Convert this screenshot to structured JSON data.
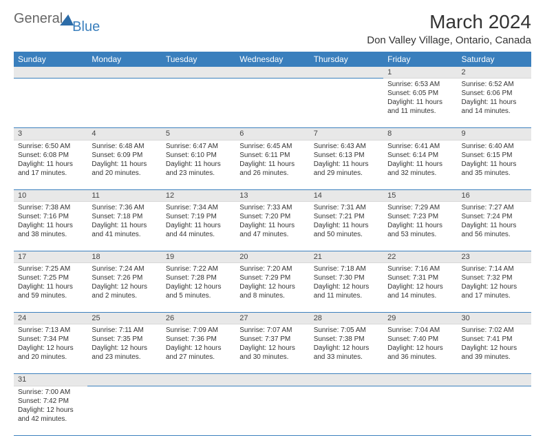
{
  "logo": {
    "part1": "General",
    "part2": "Blue"
  },
  "title": "March 2024",
  "location": "Don Valley Village, Ontario, Canada",
  "colors": {
    "header_bg": "#3a7fbd",
    "header_text": "#ffffff",
    "daynum_bg": "#e8e8e8",
    "cell_border_bottom": "#3a7fbd",
    "text": "#333333"
  },
  "weekdays": [
    "Sunday",
    "Monday",
    "Tuesday",
    "Wednesday",
    "Thursday",
    "Friday",
    "Saturday"
  ],
  "grid": [
    [
      null,
      null,
      null,
      null,
      null,
      {
        "d": "1",
        "sr": "Sunrise: 6:53 AM",
        "ss": "Sunset: 6:05 PM",
        "dl1": "Daylight: 11 hours",
        "dl2": "and 11 minutes."
      },
      {
        "d": "2",
        "sr": "Sunrise: 6:52 AM",
        "ss": "Sunset: 6:06 PM",
        "dl1": "Daylight: 11 hours",
        "dl2": "and 14 minutes."
      }
    ],
    [
      {
        "d": "3",
        "sr": "Sunrise: 6:50 AM",
        "ss": "Sunset: 6:08 PM",
        "dl1": "Daylight: 11 hours",
        "dl2": "and 17 minutes."
      },
      {
        "d": "4",
        "sr": "Sunrise: 6:48 AM",
        "ss": "Sunset: 6:09 PM",
        "dl1": "Daylight: 11 hours",
        "dl2": "and 20 minutes."
      },
      {
        "d": "5",
        "sr": "Sunrise: 6:47 AM",
        "ss": "Sunset: 6:10 PM",
        "dl1": "Daylight: 11 hours",
        "dl2": "and 23 minutes."
      },
      {
        "d": "6",
        "sr": "Sunrise: 6:45 AM",
        "ss": "Sunset: 6:11 PM",
        "dl1": "Daylight: 11 hours",
        "dl2": "and 26 minutes."
      },
      {
        "d": "7",
        "sr": "Sunrise: 6:43 AM",
        "ss": "Sunset: 6:13 PM",
        "dl1": "Daylight: 11 hours",
        "dl2": "and 29 minutes."
      },
      {
        "d": "8",
        "sr": "Sunrise: 6:41 AM",
        "ss": "Sunset: 6:14 PM",
        "dl1": "Daylight: 11 hours",
        "dl2": "and 32 minutes."
      },
      {
        "d": "9",
        "sr": "Sunrise: 6:40 AM",
        "ss": "Sunset: 6:15 PM",
        "dl1": "Daylight: 11 hours",
        "dl2": "and 35 minutes."
      }
    ],
    [
      {
        "d": "10",
        "sr": "Sunrise: 7:38 AM",
        "ss": "Sunset: 7:16 PM",
        "dl1": "Daylight: 11 hours",
        "dl2": "and 38 minutes."
      },
      {
        "d": "11",
        "sr": "Sunrise: 7:36 AM",
        "ss": "Sunset: 7:18 PM",
        "dl1": "Daylight: 11 hours",
        "dl2": "and 41 minutes."
      },
      {
        "d": "12",
        "sr": "Sunrise: 7:34 AM",
        "ss": "Sunset: 7:19 PM",
        "dl1": "Daylight: 11 hours",
        "dl2": "and 44 minutes."
      },
      {
        "d": "13",
        "sr": "Sunrise: 7:33 AM",
        "ss": "Sunset: 7:20 PM",
        "dl1": "Daylight: 11 hours",
        "dl2": "and 47 minutes."
      },
      {
        "d": "14",
        "sr": "Sunrise: 7:31 AM",
        "ss": "Sunset: 7:21 PM",
        "dl1": "Daylight: 11 hours",
        "dl2": "and 50 minutes."
      },
      {
        "d": "15",
        "sr": "Sunrise: 7:29 AM",
        "ss": "Sunset: 7:23 PM",
        "dl1": "Daylight: 11 hours",
        "dl2": "and 53 minutes."
      },
      {
        "d": "16",
        "sr": "Sunrise: 7:27 AM",
        "ss": "Sunset: 7:24 PM",
        "dl1": "Daylight: 11 hours",
        "dl2": "and 56 minutes."
      }
    ],
    [
      {
        "d": "17",
        "sr": "Sunrise: 7:25 AM",
        "ss": "Sunset: 7:25 PM",
        "dl1": "Daylight: 11 hours",
        "dl2": "and 59 minutes."
      },
      {
        "d": "18",
        "sr": "Sunrise: 7:24 AM",
        "ss": "Sunset: 7:26 PM",
        "dl1": "Daylight: 12 hours",
        "dl2": "and 2 minutes."
      },
      {
        "d": "19",
        "sr": "Sunrise: 7:22 AM",
        "ss": "Sunset: 7:28 PM",
        "dl1": "Daylight: 12 hours",
        "dl2": "and 5 minutes."
      },
      {
        "d": "20",
        "sr": "Sunrise: 7:20 AM",
        "ss": "Sunset: 7:29 PM",
        "dl1": "Daylight: 12 hours",
        "dl2": "and 8 minutes."
      },
      {
        "d": "21",
        "sr": "Sunrise: 7:18 AM",
        "ss": "Sunset: 7:30 PM",
        "dl1": "Daylight: 12 hours",
        "dl2": "and 11 minutes."
      },
      {
        "d": "22",
        "sr": "Sunrise: 7:16 AM",
        "ss": "Sunset: 7:31 PM",
        "dl1": "Daylight: 12 hours",
        "dl2": "and 14 minutes."
      },
      {
        "d": "23",
        "sr": "Sunrise: 7:14 AM",
        "ss": "Sunset: 7:32 PM",
        "dl1": "Daylight: 12 hours",
        "dl2": "and 17 minutes."
      }
    ],
    [
      {
        "d": "24",
        "sr": "Sunrise: 7:13 AM",
        "ss": "Sunset: 7:34 PM",
        "dl1": "Daylight: 12 hours",
        "dl2": "and 20 minutes."
      },
      {
        "d": "25",
        "sr": "Sunrise: 7:11 AM",
        "ss": "Sunset: 7:35 PM",
        "dl1": "Daylight: 12 hours",
        "dl2": "and 23 minutes."
      },
      {
        "d": "26",
        "sr": "Sunrise: 7:09 AM",
        "ss": "Sunset: 7:36 PM",
        "dl1": "Daylight: 12 hours",
        "dl2": "and 27 minutes."
      },
      {
        "d": "27",
        "sr": "Sunrise: 7:07 AM",
        "ss": "Sunset: 7:37 PM",
        "dl1": "Daylight: 12 hours",
        "dl2": "and 30 minutes."
      },
      {
        "d": "28",
        "sr": "Sunrise: 7:05 AM",
        "ss": "Sunset: 7:38 PM",
        "dl1": "Daylight: 12 hours",
        "dl2": "and 33 minutes."
      },
      {
        "d": "29",
        "sr": "Sunrise: 7:04 AM",
        "ss": "Sunset: 7:40 PM",
        "dl1": "Daylight: 12 hours",
        "dl2": "and 36 minutes."
      },
      {
        "d": "30",
        "sr": "Sunrise: 7:02 AM",
        "ss": "Sunset: 7:41 PM",
        "dl1": "Daylight: 12 hours",
        "dl2": "and 39 minutes."
      }
    ],
    [
      {
        "d": "31",
        "sr": "Sunrise: 7:00 AM",
        "ss": "Sunset: 7:42 PM",
        "dl1": "Daylight: 12 hours",
        "dl2": "and 42 minutes."
      },
      null,
      null,
      null,
      null,
      null,
      null
    ]
  ]
}
